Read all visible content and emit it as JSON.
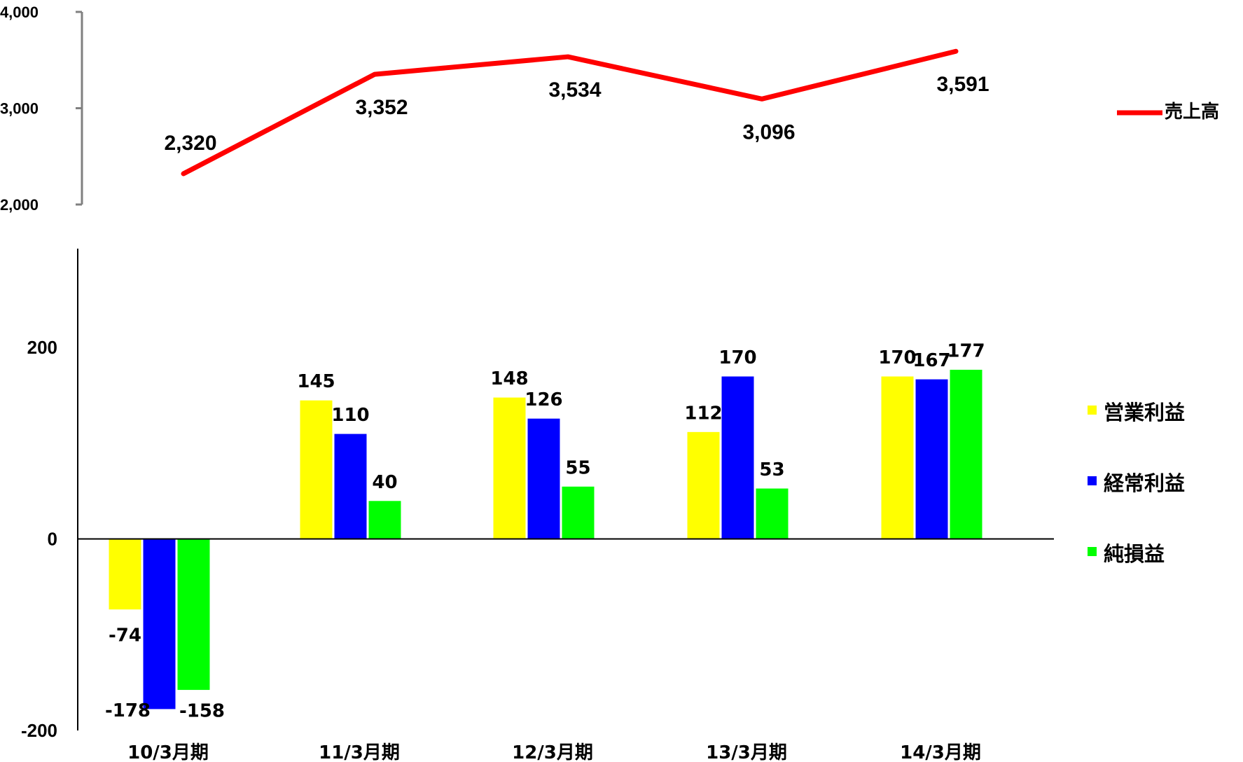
{
  "chart_data": [
    {
      "type": "line",
      "categories": [
        "10/3月期",
        "11/3月期",
        "12/3月期",
        "13/3月期",
        "14/3月期"
      ],
      "series": [
        {
          "name": "売上高",
          "values": [
            2320,
            3352,
            3534,
            3096,
            3591
          ],
          "color": "#ff0000"
        }
      ],
      "ylim": [
        2000,
        4000
      ],
      "yticks": [
        2000,
        3000,
        4000
      ],
      "ytick_labels": [
        "2,000",
        "3,000",
        "4,000"
      ],
      "value_labels": [
        "2,320",
        "3,352",
        "3,534",
        "3,096",
        "3,591"
      ],
      "legend": "right",
      "grid": false
    },
    {
      "type": "bar",
      "categories": [
        "10/3月期",
        "11/3月期",
        "12/3月期",
        "13/3月期",
        "14/3月期"
      ],
      "series": [
        {
          "name": "営業利益",
          "values": [
            -74,
            145,
            148,
            112,
            170
          ],
          "color": "#ffff00"
        },
        {
          "name": "経常利益",
          "values": [
            -178,
            110,
            126,
            170,
            167
          ],
          "color": "#0000ff"
        },
        {
          "name": "純損益",
          "values": [
            -158,
            40,
            55,
            53,
            177
          ],
          "color": "#00ff00"
        }
      ],
      "ylim": [
        -200,
        200
      ],
      "yticks": [
        -200,
        0,
        200
      ],
      "ytick_labels": [
        "-200",
        "0",
        "200"
      ],
      "legend": "right",
      "grid": false
    }
  ]
}
